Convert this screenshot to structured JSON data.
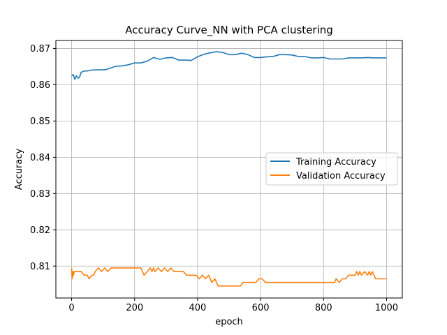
{
  "chart_data": {
    "type": "line",
    "title": "Accuracy Curve_NN with PCA clustering",
    "xlabel": "epoch",
    "ylabel": "Accuracy",
    "xlim": [
      -50,
      1050
    ],
    "ylim": [
      0.8012,
      0.8722
    ],
    "xticks": [
      0,
      200,
      400,
      600,
      800,
      1000
    ],
    "xtick_labels": [
      "0",
      "200",
      "400",
      "600",
      "800",
      "1000"
    ],
    "yticks": [
      0.81,
      0.82,
      0.83,
      0.84,
      0.85,
      0.86,
      0.87
    ],
    "ytick_labels": [
      "0.81",
      "0.82",
      "0.83",
      "0.84",
      "0.85",
      "0.86",
      "0.87"
    ],
    "grid": true,
    "legend_position": "center-right",
    "series": [
      {
        "name": "Training Accuracy",
        "color": "#1f77b4",
        "x": [
          0,
          5,
          10,
          15,
          20,
          25,
          30,
          40,
          50,
          60,
          80,
          100,
          110,
          120,
          130,
          140,
          160,
          180,
          200,
          220,
          240,
          260,
          280,
          300,
          320,
          340,
          360,
          380,
          400,
          420,
          440,
          460,
          480,
          500,
          520,
          540,
          560,
          580,
          600,
          620,
          640,
          660,
          680,
          700,
          720,
          740,
          760,
          780,
          800,
          820,
          840,
          860,
          880,
          900,
          920,
          940,
          960,
          980,
          1000
        ],
        "y": [
          0.8625,
          0.8628,
          0.8615,
          0.8625,
          0.8618,
          0.862,
          0.8634,
          0.8638,
          0.8638,
          0.864,
          0.8641,
          0.8641,
          0.8642,
          0.8645,
          0.8648,
          0.8651,
          0.8652,
          0.8655,
          0.866,
          0.866,
          0.8665,
          0.8675,
          0.867,
          0.8674,
          0.8675,
          0.8668,
          0.8668,
          0.8667,
          0.8677,
          0.8684,
          0.8688,
          0.8691,
          0.8689,
          0.8683,
          0.8683,
          0.8687,
          0.8683,
          0.8675,
          0.8675,
          0.8677,
          0.8678,
          0.8683,
          0.8683,
          0.8682,
          0.8678,
          0.8678,
          0.8674,
          0.8674,
          0.8675,
          0.8671,
          0.8671,
          0.8671,
          0.8674,
          0.8674,
          0.8674,
          0.8675,
          0.8674,
          0.8674,
          0.8674
        ]
      },
      {
        "name": "Validation Accuracy",
        "color": "#ff7f0e",
        "x": [
          0,
          2,
          4,
          6,
          8,
          12,
          20,
          30,
          40,
          50,
          55,
          65,
          70,
          75,
          85,
          95,
          105,
          115,
          125,
          140,
          160,
          180,
          200,
          220,
          225,
          230,
          240,
          250,
          255,
          260,
          265,
          275,
          285,
          295,
          305,
          315,
          325,
          335,
          345,
          355,
          365,
          375,
          385,
          395,
          405,
          415,
          425,
          435,
          445,
          455,
          465,
          475,
          485,
          495,
          505,
          515,
          525,
          535,
          545,
          555,
          565,
          575,
          585,
          595,
          605,
          615,
          625,
          635,
          645,
          655,
          665,
          675,
          685,
          695,
          705,
          715,
          725,
          735,
          745,
          755,
          765,
          775,
          785,
          795,
          805,
          815,
          825,
          835,
          840,
          850,
          860,
          870,
          880,
          890,
          900,
          905,
          910,
          915,
          920,
          930,
          940,
          945,
          950,
          955,
          960,
          965,
          970,
          980,
          990,
          1000
        ],
        "y": [
          0.8095,
          0.8065,
          0.8085,
          0.8075,
          0.8085,
          0.8085,
          0.8085,
          0.8085,
          0.8075,
          0.8075,
          0.8065,
          0.8075,
          0.8075,
          0.8085,
          0.8095,
          0.8085,
          0.8095,
          0.8085,
          0.8095,
          0.8095,
          0.8095,
          0.8095,
          0.8095,
          0.8095,
          0.8085,
          0.8075,
          0.8085,
          0.8095,
          0.8085,
          0.8095,
          0.8085,
          0.8095,
          0.8085,
          0.8095,
          0.8085,
          0.8095,
          0.8085,
          0.8085,
          0.8085,
          0.8085,
          0.8075,
          0.8075,
          0.8075,
          0.8075,
          0.8065,
          0.8075,
          0.8065,
          0.8075,
          0.8055,
          0.8065,
          0.8045,
          0.8045,
          0.8045,
          0.8045,
          0.8045,
          0.8045,
          0.8045,
          0.8045,
          0.8055,
          0.8055,
          0.8055,
          0.8055,
          0.8055,
          0.8065,
          0.8065,
          0.8055,
          0.8055,
          0.8055,
          0.8055,
          0.8055,
          0.8055,
          0.8055,
          0.8055,
          0.8055,
          0.8055,
          0.8055,
          0.8055,
          0.8055,
          0.8055,
          0.8055,
          0.8055,
          0.8055,
          0.8055,
          0.8055,
          0.8055,
          0.8055,
          0.8055,
          0.8055,
          0.8065,
          0.8055,
          0.8065,
          0.8065,
          0.8075,
          0.8075,
          0.8075,
          0.8085,
          0.8075,
          0.8085,
          0.8075,
          0.8085,
          0.8075,
          0.8085,
          0.8075,
          0.8085,
          0.8075,
          0.8065,
          0.8065,
          0.8065,
          0.8065,
          0.8065
        ]
      }
    ]
  }
}
